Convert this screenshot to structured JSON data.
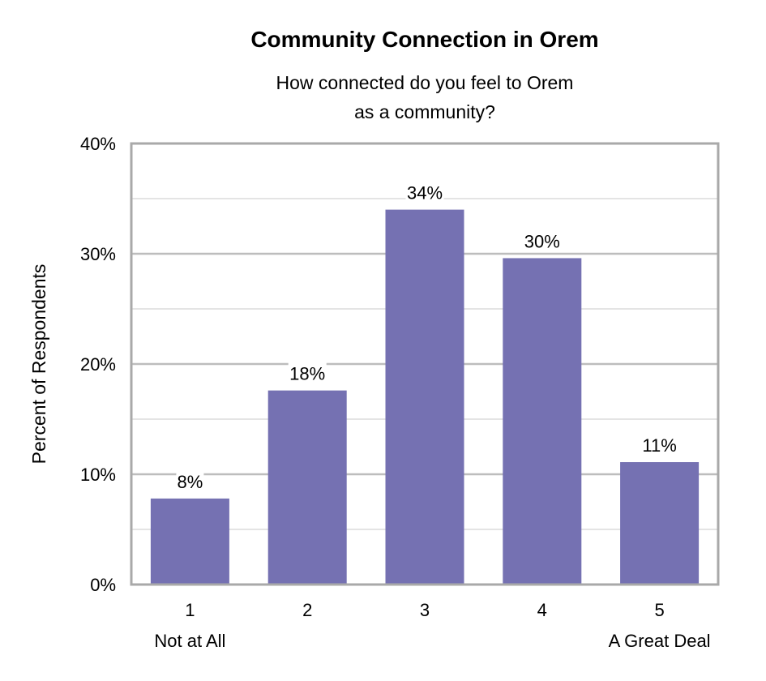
{
  "chart_data": {
    "type": "bar",
    "title": "Community Connection in Orem",
    "subtitle": [
      "How connected do you feel to Orem",
      "as a community?"
    ],
    "ylabel": "Percent of Respondents",
    "xlabel": "",
    "categories": [
      "1",
      "2",
      "3",
      "4",
      "5"
    ],
    "category_sublabels": [
      "Not at All",
      "",
      "",
      "",
      "A Great Deal"
    ],
    "values": [
      7.8,
      17.6,
      34.0,
      29.6,
      11.1
    ],
    "data_labels": [
      "8%",
      "18%",
      "34%",
      "30%",
      "11%"
    ],
    "ylim": [
      0,
      40
    ],
    "yticks": [
      0,
      10,
      20,
      30,
      40
    ],
    "ytick_labels": [
      "0%",
      "10%",
      "20%",
      "30%",
      "40%"
    ],
    "minor_grid_step": 5,
    "grid": true,
    "bar_color": "#7571b2"
  }
}
